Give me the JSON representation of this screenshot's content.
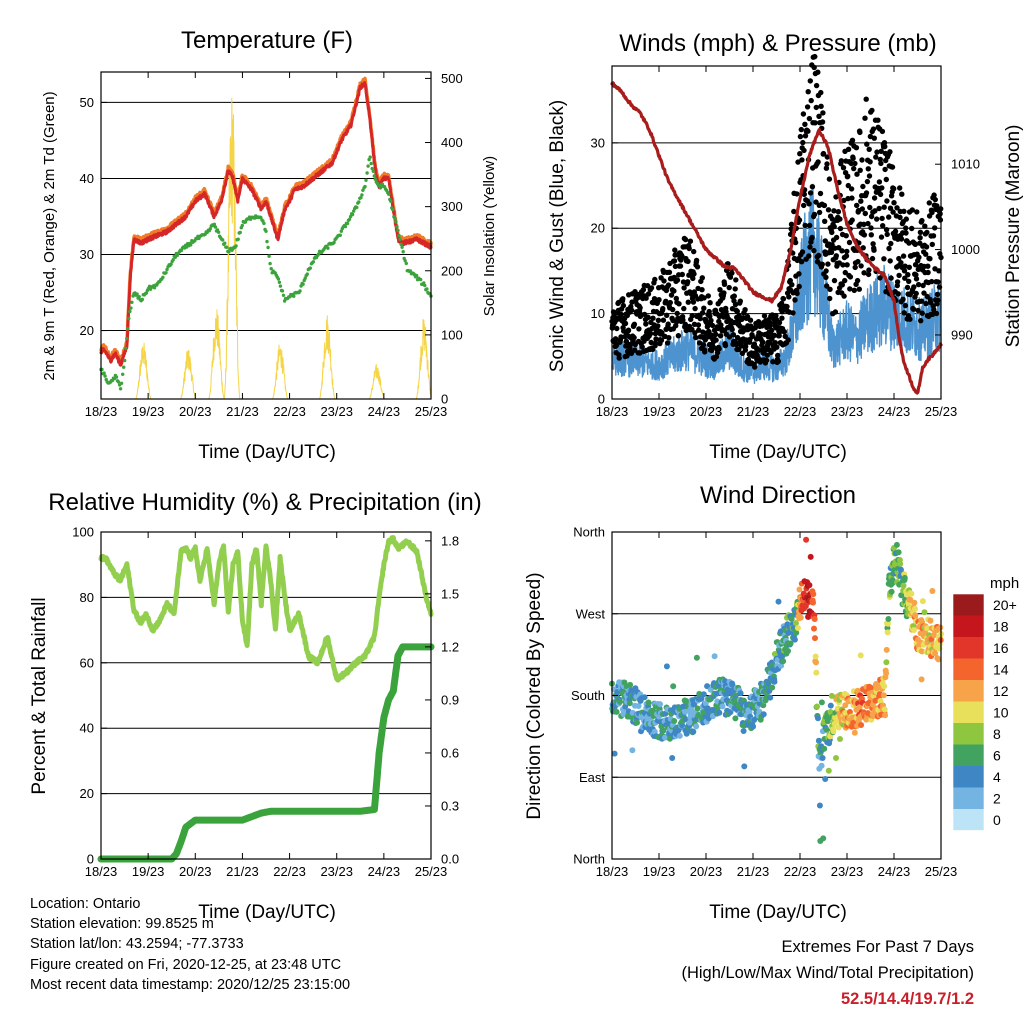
{
  "xticks": [
    "18/23",
    "19/23",
    "20/23",
    "21/23",
    "22/23",
    "23/23",
    "24/23",
    "25/23"
  ],
  "xlabel": "Time (Day/UTC)",
  "colors": {
    "t2m": "#d62728",
    "t9m": "#f07b28",
    "td": "#3ca33c",
    "solar": "#f5d547",
    "wind": "#4c93d0",
    "gust": "#000000",
    "pressure": "#a81c1c",
    "rh": "#93cf4e",
    "precip": "#3ba33b"
  },
  "colorbar": {
    "title": "mph",
    "labels": [
      "20+",
      "18",
      "16",
      "14",
      "12",
      "10",
      "8",
      "6",
      "4",
      "2",
      "0"
    ],
    "colors": [
      "#9b1a1c",
      "#c4161c",
      "#e3362a",
      "#f4652e",
      "#f7a34a",
      "#e8df5a",
      "#8fc63f",
      "#42a361",
      "#3f87c4",
      "#74b4e3",
      "#bde3f6"
    ]
  },
  "info": {
    "location": "Location: Ontario",
    "elevation": "Station elevation: 99.8525 m",
    "latlon": "Station lat/lon: 43.2594; -77.3733",
    "created": "Figure created on Fri, 2020-12-25, at 23:48 UTC",
    "recent": "Most recent data timestamp: 2020/12/25 23:15:00"
  },
  "extremes": {
    "title": "Extremes For Past 7 Days",
    "subtitle": "(High/Low/Max Wind/Total Precipitation)",
    "values": "52.5/14.4/19.7/1.2"
  },
  "chart_data": [
    {
      "type": "line",
      "title": "Temperature (F)",
      "xlabel": "Time (Day/UTC)",
      "ylabel": "2m & 9m T (Red, Orange) & 2m Td (Green)",
      "ylabel_right": "Solar Insolation (Yellow)",
      "ylim": [
        11,
        54
      ],
      "yticks": [
        20,
        30,
        40,
        50
      ],
      "ylim_right": [
        0,
        510
      ],
      "yticks_right": [
        0,
        100,
        200,
        300,
        400,
        500
      ],
      "xlim": [
        0,
        7
      ],
      "grid": "horizontal",
      "series": [
        {
          "key": "t2m",
          "x": [
            0,
            0.05,
            0.12,
            0.2,
            0.3,
            0.42,
            0.55,
            0.62,
            0.7,
            0.85,
            1.0,
            1.2,
            1.4,
            1.6,
            1.8,
            2.0,
            2.2,
            2.4,
            2.55,
            2.7,
            2.8,
            2.9,
            3.0,
            3.2,
            3.4,
            3.5,
            3.6,
            3.75,
            3.9,
            4.0,
            4.1,
            4.3,
            4.5,
            4.7,
            4.9,
            5.1,
            5.3,
            5.5,
            5.6,
            5.7,
            5.8,
            5.85,
            5.9,
            6.0,
            6.1,
            6.2,
            6.3,
            6.4,
            6.55,
            6.7,
            6.85,
            7.0
          ],
          "y": [
            17,
            17.5,
            17,
            16,
            17,
            15.5,
            18,
            27,
            32,
            31.5,
            32,
            32.5,
            33,
            34,
            35,
            37,
            38,
            35,
            37,
            41,
            40,
            37,
            40,
            38.5,
            36,
            37,
            35,
            32,
            36,
            37,
            38.5,
            39,
            40,
            41,
            42,
            45,
            47,
            52,
            52.5,
            48,
            42,
            40,
            39,
            40,
            40,
            36,
            32,
            31.5,
            31.7,
            32,
            31.5,
            31
          ]
        },
        {
          "key": "td",
          "x": [
            0,
            0.12,
            0.2,
            0.3,
            0.42,
            0.5,
            0.6,
            0.7,
            0.85,
            1.0,
            1.2,
            1.4,
            1.6,
            1.8,
            2.0,
            2.2,
            2.4,
            2.55,
            2.7,
            2.85,
            3.0,
            3.2,
            3.4,
            3.5,
            3.6,
            3.75,
            3.9,
            4.0,
            4.2,
            4.4,
            4.6,
            4.8,
            5.0,
            5.2,
            5.4,
            5.6,
            5.7,
            5.8,
            5.9,
            6.0,
            6.1,
            6.3,
            6.5,
            6.7,
            6.85,
            7.0
          ],
          "y": [
            15,
            13.5,
            13,
            14,
            12.5,
            16,
            22,
            25,
            24,
            25.5,
            26,
            28,
            30,
            31,
            32,
            32.5,
            34,
            32,
            30.5,
            31,
            34,
            35,
            35,
            33,
            28,
            27,
            24,
            24.5,
            25,
            28,
            30,
            31,
            32,
            34,
            36,
            39,
            43,
            40,
            39,
            39,
            38,
            33,
            28,
            27,
            26,
            24.5
          ]
        },
        {
          "key": "solar_peaks",
          "x": [
            0.9,
            1.85,
            2.45,
            2.78,
            3.8,
            4.8,
            5.85,
            6.85
          ],
          "y": [
            90,
            80,
            145,
            490,
            90,
            135,
            55,
            130
          ]
        }
      ]
    },
    {
      "type": "scatter",
      "title": "Winds (mph) & Pressure (mb)",
      "xlabel": "Time (Day/UTC)",
      "ylabel": "Sonic Wind & Gust (Blue, Black)",
      "ylabel_right": "Station Pressure (Maroon)",
      "ylim": [
        0,
        39
      ],
      "yticks": [
        0,
        10,
        20,
        30
      ],
      "ylim_right": [
        982.5,
        1021.5
      ],
      "yticks_right": [
        990,
        1000,
        1010
      ],
      "xlim": [
        0,
        7
      ],
      "grid": "horizontal",
      "series": [
        {
          "key": "pressure",
          "x": [
            0,
            0.2,
            0.4,
            0.6,
            0.8,
            1.0,
            1.2,
            1.4,
            1.6,
            1.8,
            2.0,
            2.2,
            2.4,
            2.6,
            2.8,
            3.0,
            3.2,
            3.4,
            3.6,
            3.8,
            4.0,
            4.2,
            4.4,
            4.6,
            4.8,
            5.0,
            5.2,
            5.4,
            5.6,
            5.8,
            6.0,
            6.1,
            6.2,
            6.3,
            6.4,
            6.5,
            6.6,
            6.7,
            6.8,
            7.0
          ],
          "y": [
            1019.5,
            1018.5,
            1017,
            1016,
            1014,
            1011,
            1008,
            1006,
            1004,
            1002,
            1000,
            999,
            998,
            997.8,
            996.5,
            995,
            994.5,
            994,
            995.5,
            1000,
            1006,
            1011,
            1014,
            1012,
            1007,
            1003,
            1000.5,
            999,
            997.8,
            997,
            994,
            990,
            987,
            985.5,
            984,
            983,
            986,
            987,
            987.5,
            989
          ]
        },
        {
          "key": "wind_mean",
          "x": [
            0,
            0.5,
            1.0,
            1.3,
            1.6,
            2.0,
            2.2,
            2.5,
            2.7,
            3.0,
            3.2,
            3.5,
            3.7,
            3.9,
            4.1,
            4.3,
            4.5,
            4.7,
            5.0,
            5.2,
            5.4,
            5.6,
            5.8,
            6.0,
            6.3,
            6.6,
            7.0
          ],
          "y": [
            5,
            4.5,
            4,
            5,
            6,
            4.5,
            4,
            6,
            4,
            3,
            4,
            3.5,
            5,
            9,
            15,
            18,
            12,
            6,
            8,
            7,
            9,
            10,
            11,
            10,
            9,
            8,
            10
          ]
        },
        {
          "key": "gust_mean",
          "x": [
            0,
            0.5,
            1.0,
            1.3,
            1.6,
            2.0,
            2.2,
            2.5,
            2.7,
            3.0,
            3.2,
            3.5,
            3.7,
            3.9,
            4.1,
            4.3,
            4.5,
            4.7,
            5.0,
            5.2,
            5.4,
            5.6,
            5.8,
            6.0,
            6.3,
            6.6,
            7.0
          ],
          "y": [
            8,
            9,
            10,
            12,
            14,
            9,
            8,
            12,
            9,
            6,
            7,
            7,
            10,
            18,
            26,
            30,
            24,
            16,
            22,
            21,
            25,
            24,
            22,
            19,
            16,
            15,
            18
          ]
        }
      ]
    },
    {
      "type": "line",
      "title": "Relative Humidity (%) & Precipitation (in)",
      "xlabel": "Time (Day/UTC)",
      "ylabel": "Percent & Total Rainfall",
      "ylim": [
        0,
        100
      ],
      "yticks": [
        0,
        20,
        40,
        60,
        80,
        100
      ],
      "ylim_right": [
        0,
        1.85
      ],
      "yticks_right": [
        "0.0",
        "0.3",
        "0.6",
        "0.9",
        "1.2",
        "1.5",
        "1.8"
      ],
      "xlim": [
        0,
        7
      ],
      "grid": "horizontal",
      "series": [
        {
          "key": "rh",
          "x": [
            0,
            0.1,
            0.25,
            0.4,
            0.55,
            0.7,
            0.85,
            0.95,
            1.1,
            1.25,
            1.4,
            1.55,
            1.7,
            1.8,
            1.9,
            2.0,
            2.1,
            2.25,
            2.4,
            2.5,
            2.6,
            2.7,
            2.8,
            2.9,
            3.0,
            3.1,
            3.2,
            3.3,
            3.4,
            3.5,
            3.6,
            3.7,
            3.8,
            3.9,
            4.0,
            4.2,
            4.4,
            4.6,
            4.8,
            5.0,
            5.2,
            5.4,
            5.6,
            5.8,
            5.9,
            6.0,
            6.1,
            6.2,
            6.3,
            6.5,
            6.7,
            6.9,
            7.0
          ],
          "y": [
            92,
            92,
            88,
            85,
            90,
            76,
            72,
            75,
            70,
            73,
            78,
            75,
            94,
            95,
            92,
            95,
            85,
            95,
            78,
            90,
            96,
            75,
            90,
            94,
            73,
            65,
            90,
            95,
            78,
            96,
            85,
            70,
            92,
            80,
            70,
            75,
            62,
            60,
            68,
            55,
            57,
            60,
            62,
            68,
            80,
            90,
            97,
            98,
            95,
            97,
            94,
            80,
            75
          ]
        },
        {
          "key": "precip",
          "x": [
            0,
            1.5,
            1.6,
            1.7,
            1.8,
            2.0,
            2.3,
            3.0,
            3.2,
            3.4,
            3.6,
            4.0,
            4.5,
            5.0,
            5.5,
            5.8,
            5.9,
            6.0,
            6.1,
            6.2,
            6.3,
            6.4,
            6.5,
            7.0
          ],
          "y": [
            0,
            0,
            0.03,
            0.1,
            0.18,
            0.22,
            0.22,
            0.22,
            0.24,
            0.26,
            0.27,
            0.27,
            0.27,
            0.27,
            0.27,
            0.28,
            0.6,
            0.8,
            0.9,
            0.95,
            1.15,
            1.2,
            1.2,
            1.2
          ]
        }
      ]
    },
    {
      "type": "scatter",
      "title": "Wind Direction",
      "xlabel": "Time (Day/UTC)",
      "ylabel": "Direction (Colored By Speed)",
      "yticks": [
        "North",
        "East",
        "South",
        "West",
        "North"
      ],
      "ylim": [
        0,
        360
      ],
      "xlim": [
        0,
        7
      ],
      "grid": "horizontal",
      "series": [
        {
          "key": "direction",
          "x": [
            0,
            0.3,
            0.6,
            0.9,
            1.2,
            1.5,
            1.8,
            2.0,
            2.3,
            2.6,
            2.8,
            3.0,
            3.2,
            3.4,
            3.5,
            3.7,
            3.9,
            4.0,
            4.1,
            4.2,
            4.3,
            4.4,
            4.5,
            4.6,
            4.7,
            4.8,
            5.0,
            5.2,
            5.4,
            5.6,
            5.8,
            5.9,
            6.0,
            6.1,
            6.2,
            6.3,
            6.4,
            6.5,
            6.7,
            6.9,
            7.0
          ],
          "y": [
            180,
            175,
            165,
            155,
            150,
            155,
            160,
            170,
            180,
            175,
            160,
            165,
            175,
            200,
            220,
            245,
            260,
            280,
            290,
            285,
            270,
            110,
            130,
            145,
            155,
            160,
            165,
            165,
            170,
            175,
            180,
            300,
            325,
            320,
            300,
            280,
            270,
            250,
            245,
            240,
            235
          ],
          "speed": [
            4,
            4,
            4,
            4,
            4,
            4,
            4,
            4,
            4,
            4,
            4,
            4,
            4,
            5,
            5,
            5,
            6,
            12,
            17,
            19,
            14,
            4,
            5,
            6,
            8,
            10,
            12,
            13,
            13,
            12,
            12,
            7,
            7,
            6,
            7,
            9,
            10,
            12,
            11,
            11,
            11
          ]
        }
      ]
    }
  ]
}
